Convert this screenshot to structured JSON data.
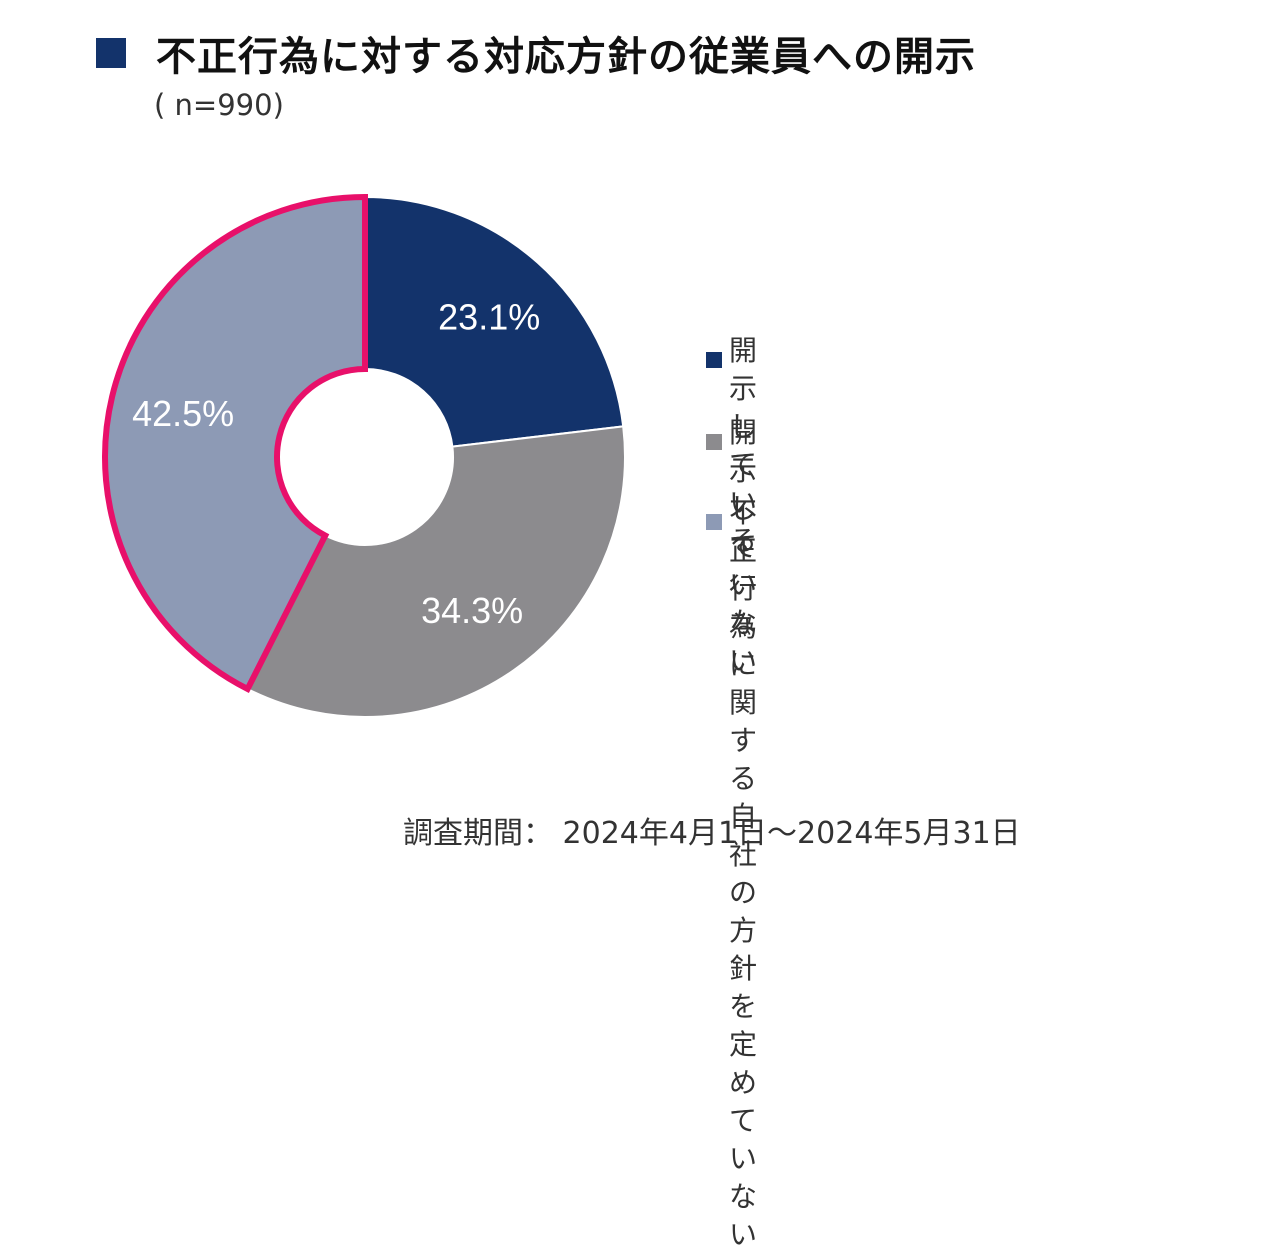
{
  "header": {
    "title": "不正行為に対する対応方針の従業員への開示",
    "subtitle": "( n=990)"
  },
  "footer": {
    "period": "調査期間： 2024年4月1日～2024年5月31日"
  },
  "chart_data": {
    "type": "pie",
    "variant": "donut",
    "categories": [
      "開示している",
      "開示していない",
      "不正行為に関する自社の\n方針を定めていない"
    ],
    "values": [
      23.1,
      34.3,
      42.5
    ],
    "labels": [
      "23.1%",
      "34.3%",
      "42.5%"
    ],
    "colors": [
      "#13336b",
      "#8c8b8e",
      "#8d9ab5"
    ],
    "highlight": {
      "slice": 2,
      "outline_color": "#e8106a"
    },
    "legend_position": "right"
  }
}
